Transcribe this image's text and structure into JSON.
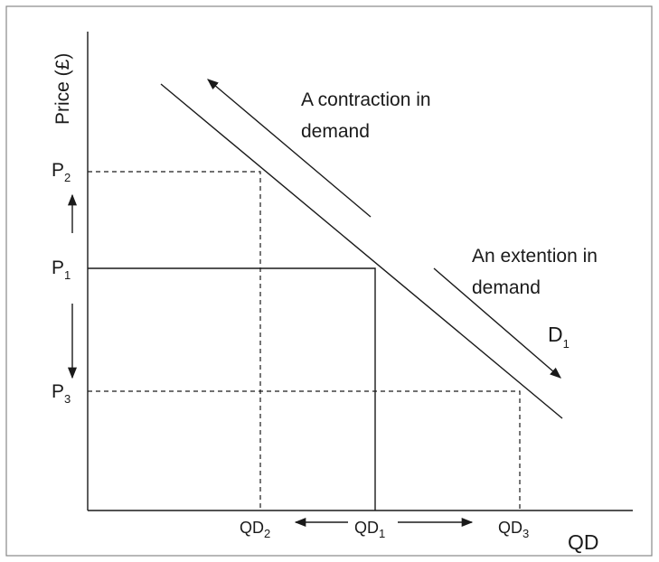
{
  "diagram": {
    "y_axis_label": "Price (£)",
    "x_axis_label": "QD",
    "price_levels": [
      {
        "letter": "P",
        "sub": "2"
      },
      {
        "letter": "P",
        "sub": "1"
      },
      {
        "letter": "P",
        "sub": "3"
      }
    ],
    "quantity_levels": [
      {
        "letter": "QD",
        "sub": "2"
      },
      {
        "letter": "QD",
        "sub": "1"
      },
      {
        "letter": "QD",
        "sub": "3"
      }
    ],
    "contraction_label": [
      "A contraction in",
      "demand"
    ],
    "extension_label": [
      "An extention in",
      "demand"
    ],
    "curve_label": {
      "letter": "D",
      "sub": "1"
    }
  }
}
